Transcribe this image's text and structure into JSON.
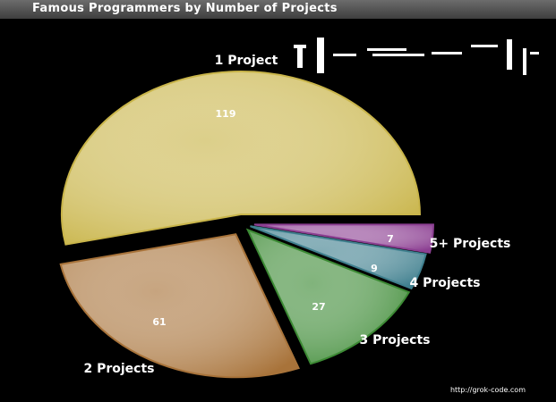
{
  "header": {
    "title": "Famous Programmers by Number of Projects"
  },
  "footer": {
    "credit": "http://grok-code.com"
  },
  "chart_data": {
    "type": "pie",
    "title": "Famous Programmers by Number of Projects",
    "categories": [
      "1 Project",
      "2 Projects",
      "3 Projects",
      "4 Projects",
      "5+ Projects"
    ],
    "values": [
      119,
      61,
      27,
      9,
      7
    ],
    "colors": [
      "#c9b54a",
      "#a8733a",
      "#3c8a34",
      "#3f7f8e",
      "#8c3f92"
    ],
    "exploded": true,
    "legend": "labels-outside"
  }
}
